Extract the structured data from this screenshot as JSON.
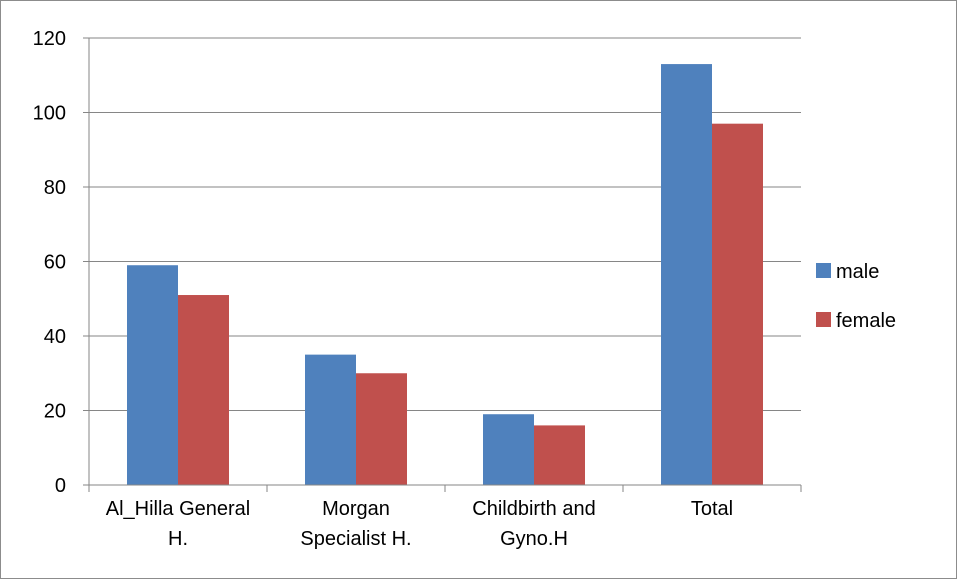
{
  "chart_data": {
    "type": "bar",
    "categories": [
      [
        "Al_Hilla General",
        "H."
      ],
      [
        "Morgan",
        "Specialist H."
      ],
      [
        "Childbirth and",
        "Gyno.H"
      ],
      [
        "Total"
      ]
    ],
    "series": [
      {
        "name": "male",
        "values": [
          59,
          35,
          19,
          113
        ],
        "color": "#4f81bd"
      },
      {
        "name": "female",
        "values": [
          51,
          30,
          16,
          97
        ],
        "color": "#c0504d"
      }
    ],
    "y_ticks": [
      "0",
      "20",
      "40",
      "60",
      "80",
      "100",
      "120"
    ],
    "ylim": [
      0,
      120
    ],
    "grid": true,
    "legend_position": "right",
    "title": "",
    "xlabel": "",
    "ylabel": ""
  }
}
